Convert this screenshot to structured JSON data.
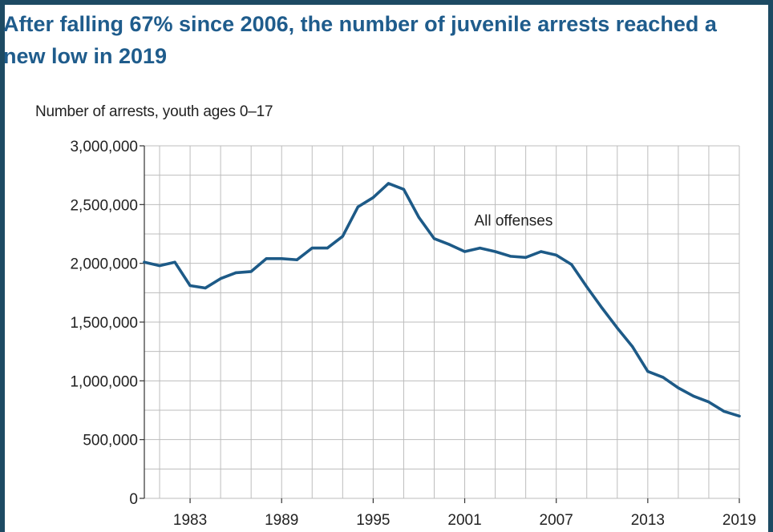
{
  "title": "After falling 67% since 2006, the number of juvenile arrests reached a new low in 2019",
  "chart_data": {
    "type": "line",
    "title": "After falling 67% since 2006, the number of juvenile arrests reached a new low in 2019",
    "ylabel": "Number of arrests, youth ages 0–17",
    "xlabel": "",
    "xlim": [
      1980,
      2019
    ],
    "ylim": [
      0,
      3000000
    ],
    "grid": true,
    "x_tick_labels": [
      "1983",
      "1989",
      "1995",
      "2001",
      "2007",
      "2013",
      "2019"
    ],
    "x_ticks": [
      1983,
      1989,
      1995,
      2001,
      2007,
      2013,
      2019
    ],
    "y_tick_labels": [
      "0",
      "500,000",
      "1,000,000",
      "1,500,000",
      "2,000,000",
      "2,500,000",
      "3,000,000"
    ],
    "y_ticks": [
      0,
      500000,
      1000000,
      1500000,
      2000000,
      2500000,
      3000000
    ],
    "annotation": "All offenses",
    "annotation_x": 2004.2,
    "annotation_y": 2320000,
    "line_color": "#1d5a87",
    "series": [
      {
        "name": "All offenses",
        "x": [
          1980,
          1981,
          1982,
          1983,
          1984,
          1985,
          1986,
          1987,
          1988,
          1989,
          1990,
          1991,
          1992,
          1993,
          1994,
          1995,
          1996,
          1997,
          1998,
          1999,
          2000,
          2001,
          2002,
          2003,
          2004,
          2005,
          2006,
          2007,
          2008,
          2009,
          2010,
          2011,
          2012,
          2013,
          2014,
          2015,
          2016,
          2017,
          2018,
          2019
        ],
        "values": [
          2010000,
          1980000,
          2010000,
          1810000,
          1790000,
          1870000,
          1920000,
          1930000,
          2040000,
          2040000,
          2030000,
          2130000,
          2130000,
          2230000,
          2480000,
          2560000,
          2680000,
          2630000,
          2390000,
          2210000,
          2160000,
          2100000,
          2130000,
          2100000,
          2060000,
          2050000,
          2100000,
          2070000,
          1990000,
          1800000,
          1620000,
          1450000,
          1290000,
          1080000,
          1030000,
          940000,
          870000,
          820000,
          740000,
          700000
        ]
      }
    ]
  }
}
